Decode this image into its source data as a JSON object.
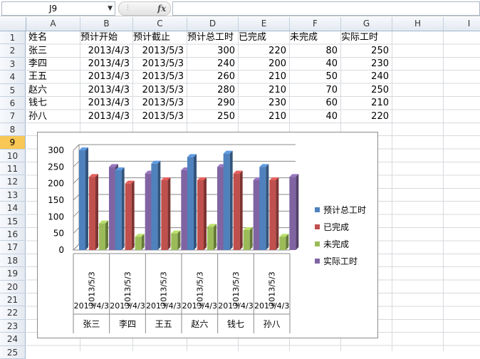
{
  "formula_bar": {
    "cell_ref": "J9",
    "fx_label": "fx",
    "formula": ""
  },
  "columns": [
    "A",
    "B",
    "C",
    "D",
    "E",
    "F",
    "G",
    "H",
    "I"
  ],
  "rows": [
    "1",
    "2",
    "3",
    "4",
    "5",
    "6",
    "7",
    "8",
    "9",
    "10",
    "11",
    "12",
    "13",
    "14",
    "15",
    "16",
    "17",
    "18",
    "19",
    "20",
    "21",
    "22",
    "23",
    "24",
    "25"
  ],
  "selected_row": "9",
  "sheet": {
    "headers": [
      "姓名",
      "预计开始",
      "预计截止",
      "预计总工时",
      "已完成",
      "未完成",
      "实际工时"
    ],
    "records": [
      [
        "张三",
        "2013/4/3",
        "2013/5/3",
        "300",
        "220",
        "80",
        "250"
      ],
      [
        "李四",
        "2013/4/3",
        "2013/5/3",
        "240",
        "200",
        "40",
        "230"
      ],
      [
        "王五",
        "2013/4/3",
        "2013/5/3",
        "260",
        "210",
        "50",
        "240"
      ],
      [
        "赵六",
        "2013/4/3",
        "2013/5/3",
        "280",
        "210",
        "70",
        "250"
      ],
      [
        "钱七",
        "2013/4/3",
        "2013/5/3",
        "290",
        "230",
        "60",
        "210"
      ],
      [
        "孙八",
        "2013/4/3",
        "2013/5/3",
        "250",
        "210",
        "40",
        "220"
      ]
    ]
  },
  "chart_data": {
    "type": "bar",
    "title": "",
    "categories": [
      "张三",
      "李四",
      "王五",
      "赵六",
      "钱七",
      "孙八"
    ],
    "category_start_labels": [
      "2013/4/3",
      "2013/4/3",
      "2013/4/3",
      "2013/4/3",
      "2013/4/3",
      "2013/4/3"
    ],
    "category_end_labels": [
      "2013/5/3",
      "2013/5/3",
      "2013/5/3",
      "2013/5/3",
      "2013/5/3",
      "2013/5/3"
    ],
    "series": [
      {
        "name": "预计总工时",
        "values": [
          300,
          240,
          260,
          280,
          290,
          250
        ],
        "color": "#4f81bd"
      },
      {
        "name": "已完成",
        "values": [
          220,
          200,
          210,
          210,
          230,
          210
        ],
        "color": "#c0504d"
      },
      {
        "name": "未完成",
        "values": [
          80,
          40,
          50,
          70,
          60,
          40
        ],
        "color": "#9bbb59"
      },
      {
        "name": "实际工时",
        "values": [
          250,
          230,
          240,
          250,
          210,
          220
        ],
        "color": "#8064a2"
      }
    ],
    "yticks": [
      0,
      50,
      100,
      150,
      200,
      250,
      300
    ],
    "ylim": [
      0,
      300
    ],
    "legend": "right",
    "grid": true,
    "style": "3d-clustered-column"
  }
}
